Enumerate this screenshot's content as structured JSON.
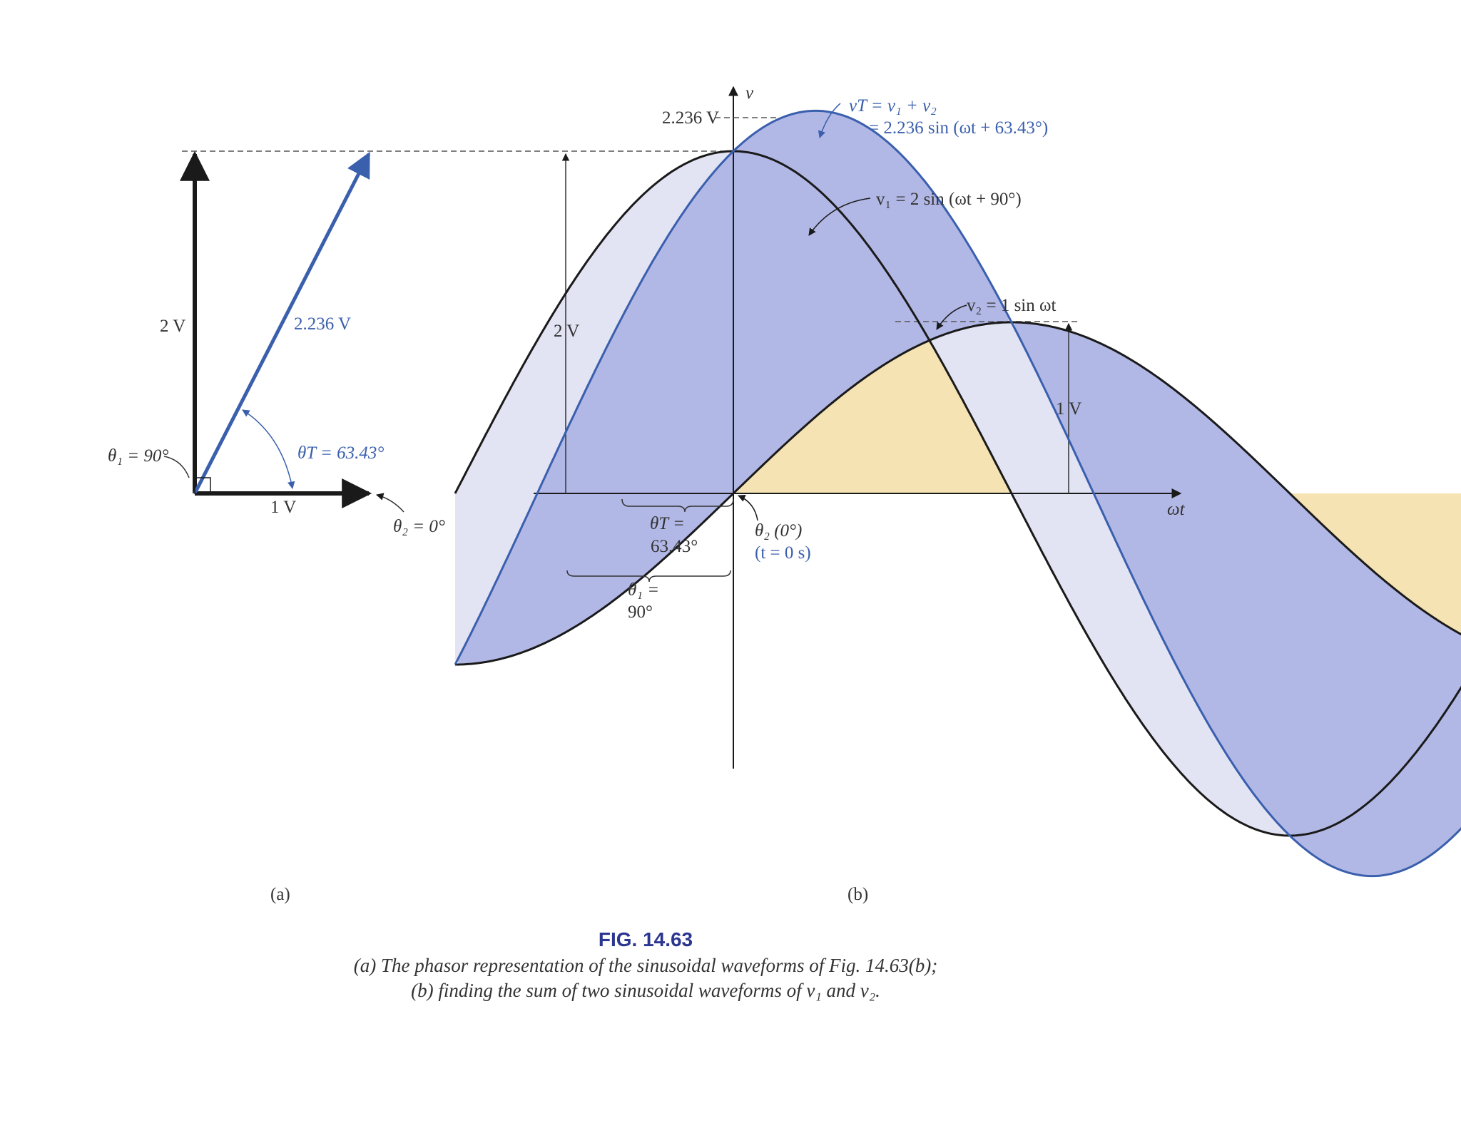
{
  "colors": {
    "blue": "#3a5fad",
    "black": "#1a1a1a",
    "tan": "#f5e3b3",
    "lavender": "#e2e3f3",
    "periwinkle": "#b2b8e6",
    "title_blue": "#2b3690"
  },
  "panel_a": {
    "label": "(a)",
    "label_2v": "2 V",
    "label_1v": "1 V",
    "label_mag": "2.236 V",
    "theta1": "θ₁ = 90°",
    "thetaT": "θT = 63.43°",
    "theta2": "θ₂ = 0°"
  },
  "panel_b": {
    "label": "(b)",
    "axis_v": "v",
    "axis_wt": "ωt",
    "peak_label": "2.236 V",
    "label_2v": "2 V",
    "label_1v": "1 V",
    "vt_line1": "vT = v₁ + v₂",
    "vt_line2": "= 2.236 sin (ωt + 63.43°)",
    "v1_label": "v₁ = 2 sin (ωt + 90°)",
    "v2_label": "v₂ = 1 sin ωt",
    "thetaT_line1": "θT =",
    "thetaT_line2": "63.43°",
    "theta1_line1": "θ₁ =",
    "theta1_line2": "90°",
    "theta2_line1": "θ₂ (0°)",
    "theta2_line2": "(t = 0 s)"
  },
  "caption": {
    "title": "FIG. 14.63",
    "line1": "(a) The phasor representation of the sinusoidal waveforms of Fig. 14.63(b);",
    "line2": "(b) finding the sum of two sinusoidal waveforms of v₁ and v₂."
  },
  "chart_data": {
    "type": "line",
    "title": "Sum of two sinusoidal waveforms",
    "xlabel": "ωt",
    "ylabel": "v",
    "x_unit": "degrees",
    "x_range": [
      -90,
      270
    ],
    "series": [
      {
        "name": "v1 = 2 sin (ωt + 90°)",
        "amplitude": 2,
        "phase_deg": 90
      },
      {
        "name": "v2 = 1 sin ωt",
        "amplitude": 1,
        "phase_deg": 0
      },
      {
        "name": "vT = 2.236 sin (ωt + 63.43°)",
        "amplitude": 2.236,
        "phase_deg": 63.43
      }
    ],
    "phasors": [
      {
        "name": "v1",
        "magnitude": 2,
        "angle_deg": 90
      },
      {
        "name": "v2",
        "magnitude": 1,
        "angle_deg": 0
      },
      {
        "name": "vT",
        "magnitude": 2.236,
        "angle_deg": 63.43
      }
    ]
  }
}
